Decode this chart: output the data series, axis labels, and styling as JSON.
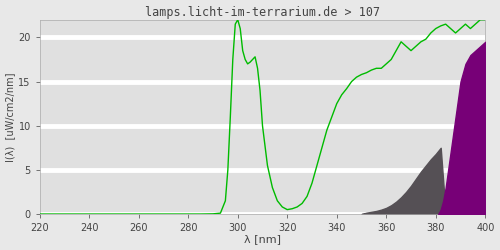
{
  "title": "lamps.licht-im-terrarium.de > 107",
  "xlabel": "λ [nm]",
  "ylabel": "I(λ)  [uW/cm2/nm]",
  "xlim": [
    220,
    400
  ],
  "ylim": [
    0,
    22
  ],
  "xticks": [
    220,
    240,
    260,
    280,
    300,
    320,
    340,
    360,
    380,
    400
  ],
  "yticks": [
    0,
    5,
    10,
    15,
    20
  ],
  "line_color": "#00bb00",
  "uva_gray_color": "#555055",
  "uva_purple_color": "#770077",
  "bg_color": "#e8e8e8",
  "plot_bg_color": "#e0e0e0",
  "grid_color": "#f5f5f5",
  "spine_color": "#aaaaaa",
  "text_color": "#444444",
  "spectrum_x": [
    220,
    285,
    290,
    293,
    295,
    296,
    297,
    298,
    299,
    300,
    301,
    302,
    303,
    304,
    305,
    306,
    307,
    308,
    309,
    310,
    312,
    314,
    316,
    318,
    320,
    322,
    324,
    326,
    328,
    330,
    332,
    334,
    336,
    338,
    340,
    342,
    344,
    346,
    348,
    350,
    352,
    354,
    356,
    358,
    360,
    362,
    364,
    366,
    368,
    370,
    372,
    374,
    376,
    378,
    380,
    382,
    384,
    386,
    388,
    390,
    392,
    394,
    396,
    398,
    400
  ],
  "spectrum_y": [
    0.0,
    0.0,
    0.02,
    0.1,
    1.5,
    5.0,
    11.0,
    17.5,
    21.5,
    22.0,
    21.0,
    18.5,
    17.5,
    17.0,
    17.2,
    17.5,
    17.8,
    16.5,
    14.0,
    10.0,
    5.5,
    3.0,
    1.5,
    0.8,
    0.5,
    0.6,
    0.8,
    1.2,
    2.0,
    3.5,
    5.5,
    7.5,
    9.5,
    11.0,
    12.5,
    13.5,
    14.2,
    15.0,
    15.5,
    15.8,
    16.0,
    16.3,
    16.5,
    16.5,
    17.0,
    17.5,
    18.5,
    19.5,
    19.0,
    18.5,
    19.0,
    19.5,
    19.8,
    20.5,
    21.0,
    21.3,
    21.5,
    21.0,
    20.5,
    21.0,
    21.5,
    21.0,
    21.5,
    22.0,
    22.0
  ],
  "gray_fill_x": [
    350,
    352,
    354,
    356,
    358,
    360,
    362,
    364,
    366,
    368,
    370,
    372,
    374,
    376,
    378,
    380,
    382,
    384,
    400
  ],
  "gray_fill_y": [
    0.0,
    0.15,
    0.25,
    0.35,
    0.5,
    0.7,
    1.0,
    1.4,
    1.9,
    2.5,
    3.2,
    4.0,
    4.8,
    5.5,
    6.2,
    6.8,
    7.5,
    0.0,
    0.0
  ],
  "purple_fill_x": [
    381,
    382,
    383,
    384,
    385,
    386,
    387,
    388,
    389,
    390,
    392,
    394,
    396,
    398,
    400
  ],
  "purple_fill_y": [
    0.0,
    0.5,
    1.5,
    3.0,
    5.0,
    7.0,
    9.0,
    11.0,
    13.0,
    15.0,
    17.0,
    18.0,
    18.5,
    19.0,
    19.5
  ]
}
